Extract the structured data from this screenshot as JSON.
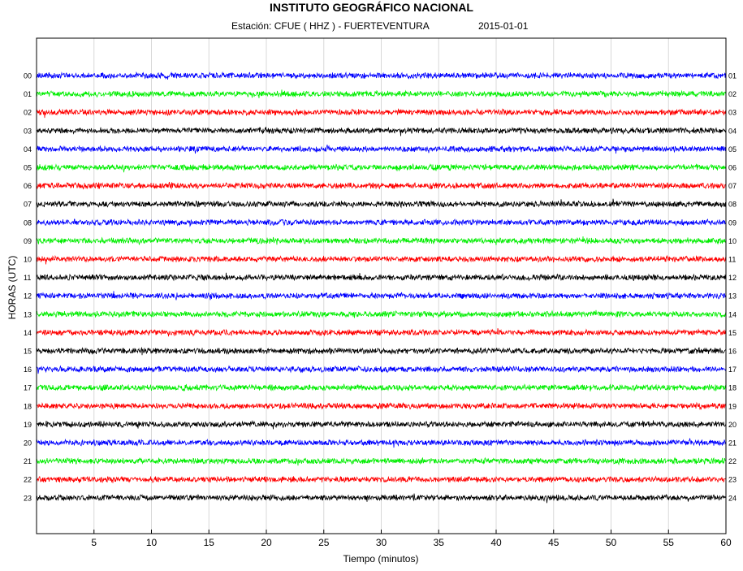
{
  "header": {
    "title": "INSTITUTO GEOGRÁFICO NACIONAL",
    "station_label": "Estación:  CFUE ( HHZ ) - FUERTEVENTURA",
    "date": "2015-01-01"
  },
  "chart_data": {
    "type": "line",
    "title": "INSTITUTO GEOGRÁFICO NACIONAL",
    "xlabel": "Tiempo (minutos)",
    "ylabel": "HORAS (UTC)",
    "xlim": [
      0,
      60
    ],
    "x_ticks": [
      5,
      10,
      15,
      20,
      25,
      30,
      35,
      40,
      45,
      50,
      55,
      60
    ],
    "grid": true,
    "left_labels": [
      "00",
      "01",
      "02",
      "03",
      "04",
      "05",
      "06",
      "07",
      "08",
      "09",
      "10",
      "11",
      "12",
      "13",
      "14",
      "15",
      "16",
      "17",
      "18",
      "19",
      "20",
      "21",
      "22",
      "23"
    ],
    "right_labels": [
      "01",
      "02",
      "03",
      "04",
      "05",
      "06",
      "07",
      "08",
      "09",
      "10",
      "11",
      "12",
      "13",
      "14",
      "15",
      "16",
      "17",
      "18",
      "19",
      "20",
      "21",
      "22",
      "23",
      "24"
    ],
    "trace_colors": [
      "#0000ff",
      "#00ee00",
      "#ff0000",
      "#000000"
    ]
  }
}
